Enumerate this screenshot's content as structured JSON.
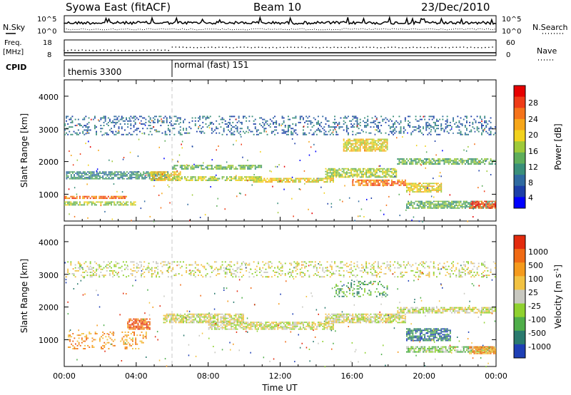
{
  "header": {
    "station": "Syowa East (fitACF)",
    "beam": "Beam 10",
    "date": "23/Dec/2010"
  },
  "strip_labels": {
    "nsky": "N.Sky",
    "nsearch": "N.Search",
    "freq_line1": "Freq.",
    "freq_line2": "[MHz]",
    "nave": "Nave",
    "cpid": "CPID",
    "nsky_ticks": [
      "10^5",
      "10^0"
    ],
    "nsearch_ticks": [
      "10^5",
      "10^0"
    ],
    "freq_ticks": [
      "18",
      "8"
    ],
    "nave_ticks": [
      "60",
      "0"
    ]
  },
  "cpid_segments": [
    {
      "label": "themis 3300",
      "start_hour": 0
    },
    {
      "label": "normal (fast) 151",
      "start_hour": 6
    }
  ],
  "colors": {
    "power_scale": [
      "#0000ff",
      "#1d3fa8",
      "#2f6aa0",
      "#3a8f7a",
      "#5fae5b",
      "#9fca3a",
      "#f2d21e",
      "#f6a619",
      "#f5731a",
      "#ef3b17",
      "#e60000"
    ],
    "velocity_scale": [
      "#1e3fb5",
      "#2a7a6e",
      "#4fae4a",
      "#8fd12f",
      "#c8c8c0",
      "#f2c242",
      "#f59a1c",
      "#f06a14",
      "#e32b0e"
    ]
  },
  "chart_data": [
    {
      "type": "heatmap",
      "panel": "power",
      "ylabel": "Slant Range [km]",
      "colorbar_label": "Power [dB]",
      "colorbar_ticks": [
        "28",
        "24",
        "20",
        "16",
        "12",
        "8",
        "4"
      ],
      "y_ticks": [
        "4000",
        "3000",
        "2000",
        "1000"
      ],
      "ylim": [
        180,
        4500
      ],
      "xlim": [
        0,
        24
      ],
      "grid": false,
      "bands": [
        {
          "x0": 0.1,
          "x1": 5.8,
          "y0": 1450,
          "y1": 1700,
          "level": 3
        },
        {
          "x0": 0.0,
          "x1": 3.5,
          "y0": 850,
          "y1": 950,
          "level": 8
        },
        {
          "x0": 0.0,
          "x1": 4.0,
          "y0": 650,
          "y1": 780,
          "level": 5
        },
        {
          "x0": 4.8,
          "x1": 6.5,
          "y0": 1400,
          "y1": 1700,
          "level": 6
        },
        {
          "x0": 6.0,
          "x1": 11.0,
          "y0": 1750,
          "y1": 1900,
          "level": 4
        },
        {
          "x0": 6.0,
          "x1": 11.0,
          "y0": 1400,
          "y1": 1550,
          "level": 5
        },
        {
          "x0": 10.5,
          "x1": 15.0,
          "y0": 1350,
          "y1": 1500,
          "level": 6
        },
        {
          "x0": 14.5,
          "x1": 18.5,
          "y0": 1500,
          "y1": 1800,
          "level": 5
        },
        {
          "x0": 16.0,
          "x1": 19.0,
          "y0": 1250,
          "y1": 1450,
          "level": 8
        },
        {
          "x0": 15.5,
          "x1": 18.0,
          "y0": 2300,
          "y1": 2700,
          "level": 6
        },
        {
          "x0": 18.5,
          "x1": 24.0,
          "y0": 1900,
          "y1": 2100,
          "level": 4
        },
        {
          "x0": 19.0,
          "x1": 21.0,
          "y0": 1050,
          "y1": 1350,
          "level": 6
        },
        {
          "x0": 19.0,
          "x1": 24.0,
          "y0": 550,
          "y1": 800,
          "level": 4
        },
        {
          "x0": 22.5,
          "x1": 24.0,
          "y0": 550,
          "y1": 800,
          "level": 9
        },
        {
          "x0": 0.0,
          "x1": 24.0,
          "y0": 2800,
          "y1": 3400,
          "level": 2
        }
      ]
    },
    {
      "type": "heatmap",
      "panel": "velocity",
      "ylabel": "Slant Range [km]",
      "colorbar_label": "Velocity [m s^-1]",
      "colorbar_ticks": [
        "1000",
        "500",
        "100",
        "25",
        "-25",
        "-100",
        "-500",
        "-1000"
      ],
      "y_ticks": [
        "4000",
        "3000",
        "2000",
        "1000"
      ],
      "ylim": [
        180,
        4500
      ],
      "xlim": [
        0,
        24
      ],
      "grid": false,
      "bands": [
        {
          "x0": 0.2,
          "x1": 4.6,
          "y0": 700,
          "y1": 1250,
          "level": 6
        },
        {
          "x0": 3.5,
          "x1": 4.8,
          "y0": 1300,
          "y1": 1650,
          "level": 7
        },
        {
          "x0": 5.5,
          "x1": 10.0,
          "y0": 1500,
          "y1": 1800,
          "level": 4
        },
        {
          "x0": 8.0,
          "x1": 15.0,
          "y0": 1300,
          "y1": 1550,
          "level": 4
        },
        {
          "x0": 15.0,
          "x1": 18.0,
          "y0": 2300,
          "y1": 2800,
          "level": 2
        },
        {
          "x0": 14.5,
          "x1": 19.0,
          "y0": 1500,
          "y1": 1800,
          "level": 4
        },
        {
          "x0": 18.5,
          "x1": 24.0,
          "y0": 1800,
          "y1": 2000,
          "level": 4
        },
        {
          "x0": 19.0,
          "x1": 21.5,
          "y0": 950,
          "y1": 1350,
          "level": 1
        },
        {
          "x0": 19.0,
          "x1": 24.0,
          "y0": 600,
          "y1": 800,
          "level": 3
        },
        {
          "x0": 22.5,
          "x1": 24.0,
          "y0": 550,
          "y1": 800,
          "level": 6
        },
        {
          "x0": 0.0,
          "x1": 24.0,
          "y0": 2900,
          "y1": 3400,
          "level": 4
        }
      ]
    }
  ],
  "x_axis": {
    "label": "Time UT",
    "ticks": [
      "00:00",
      "04:00",
      "08:00",
      "12:00",
      "16:00",
      "20:00",
      "00:00"
    ]
  }
}
